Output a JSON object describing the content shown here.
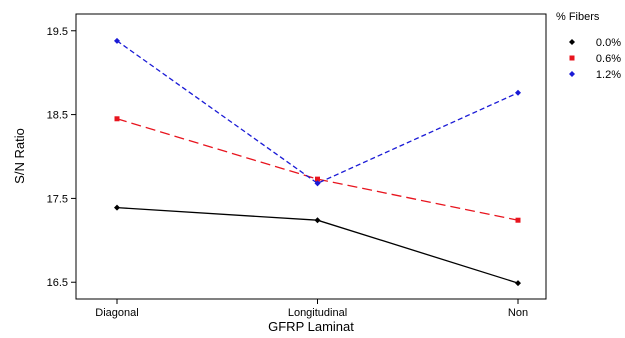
{
  "chart_data": {
    "type": "line",
    "xlabel": "GFRP Laminat",
    "ylabel": "S/N Ratio",
    "categories": [
      "Diagonal",
      "Longitudinal",
      "Non"
    ],
    "ylim": [
      16.3,
      19.7
    ],
    "yticks": [
      16.5,
      17.5,
      18.5,
      19.5
    ],
    "ytick_labels": [
      "16.5",
      "17.5",
      "18.5",
      "19.5"
    ],
    "grid": false,
    "legend": {
      "title": "% Fibers",
      "placement": "top-right, outside plot"
    },
    "series": [
      {
        "name": "0.0%",
        "values": [
          17.39,
          17.24,
          16.49
        ],
        "color": "#000000",
        "line_style": "solid",
        "marker": "diamond"
      },
      {
        "name": "0.6%",
        "values": [
          18.45,
          17.73,
          17.24
        ],
        "color": "#e8141e",
        "line_style": "dashed",
        "marker": "square"
      },
      {
        "name": "1.2%",
        "values": [
          19.38,
          17.68,
          18.76
        ],
        "color": "#1a1ad6",
        "line_style": "dotted",
        "marker": "diamond"
      }
    ]
  }
}
